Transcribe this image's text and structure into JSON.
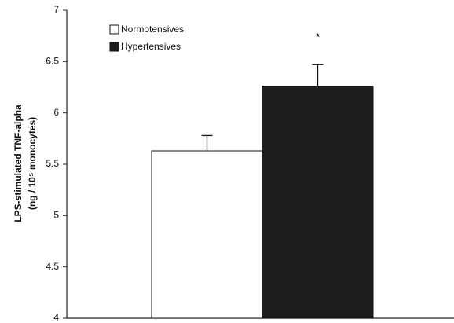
{
  "chart_data": {
    "type": "bar",
    "ylabel": [
      "LPS-stimulated TNF-alpha",
      "(ng / 10⁵ monocytes)"
    ],
    "categories": [
      null
    ],
    "series": [
      {
        "name": "Normotensives",
        "color": "#ffffff",
        "values": [
          5.63
        ],
        "errors": [
          0.15
        ]
      },
      {
        "name": "Hypertensives",
        "color": "#1e1e1e",
        "values": [
          6.26
        ],
        "errors": [
          0.21
        ]
      }
    ],
    "annotations": [
      "*"
    ],
    "ylim": [
      4,
      7
    ],
    "yticks": [
      4,
      4.5,
      5,
      5.5,
      6,
      6.5,
      7
    ],
    "grid": false,
    "legend": "top-left"
  }
}
